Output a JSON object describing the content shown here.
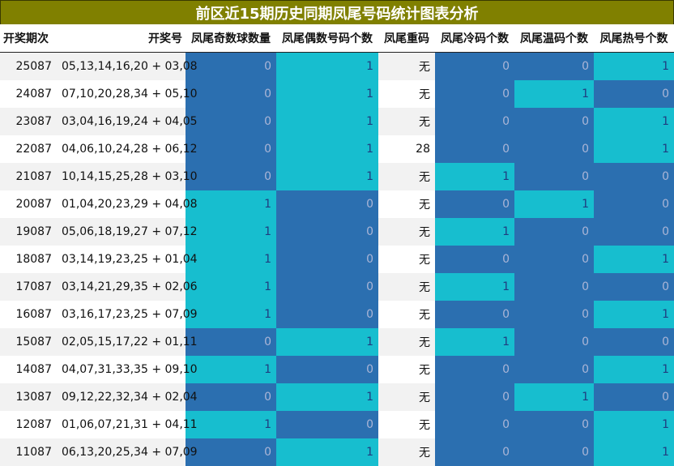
{
  "title": "前区近15期历史同期凤尾号码统计图表分析",
  "colors": {
    "dark": "#2b6fb0",
    "light": "#17becf",
    "title_bg": "#808000"
  },
  "headers": [
    "开奖期次",
    "开奖号",
    "凤尾奇数球数量",
    "凤尾偶数号码个数",
    "凤尾重码",
    "凤尾冷码个数",
    "凤尾温码个数",
    "凤尾热号个数"
  ],
  "rows": [
    {
      "issue": "25087",
      "numbers": "05,13,14,16,20 + 03,08",
      "odd": "0",
      "even": "1",
      "repeat": "无",
      "cold": "0",
      "warm": "0",
      "hot": "1"
    },
    {
      "issue": "24087",
      "numbers": "07,10,20,28,34 + 05,10",
      "odd": "0",
      "even": "1",
      "repeat": "无",
      "cold": "0",
      "warm": "1",
      "hot": "0"
    },
    {
      "issue": "23087",
      "numbers": "03,04,16,19,24 + 04,05",
      "odd": "0",
      "even": "1",
      "repeat": "无",
      "cold": "0",
      "warm": "0",
      "hot": "1"
    },
    {
      "issue": "22087",
      "numbers": "04,06,10,24,28 + 06,12",
      "odd": "0",
      "even": "1",
      "repeat": "28",
      "cold": "0",
      "warm": "0",
      "hot": "1"
    },
    {
      "issue": "21087",
      "numbers": "10,14,15,25,28 + 03,10",
      "odd": "0",
      "even": "1",
      "repeat": "无",
      "cold": "1",
      "warm": "0",
      "hot": "0"
    },
    {
      "issue": "20087",
      "numbers": "01,04,20,23,29 + 04,08",
      "odd": "1",
      "even": "0",
      "repeat": "无",
      "cold": "0",
      "warm": "1",
      "hot": "0"
    },
    {
      "issue": "19087",
      "numbers": "05,06,18,19,27 + 07,12",
      "odd": "1",
      "even": "0",
      "repeat": "无",
      "cold": "1",
      "warm": "0",
      "hot": "0"
    },
    {
      "issue": "18087",
      "numbers": "03,14,19,23,25 + 01,04",
      "odd": "1",
      "even": "0",
      "repeat": "无",
      "cold": "0",
      "warm": "0",
      "hot": "1"
    },
    {
      "issue": "17087",
      "numbers": "03,14,21,29,35 + 02,06",
      "odd": "1",
      "even": "0",
      "repeat": "无",
      "cold": "1",
      "warm": "0",
      "hot": "0"
    },
    {
      "issue": "16087",
      "numbers": "03,16,17,23,25 + 07,09",
      "odd": "1",
      "even": "0",
      "repeat": "无",
      "cold": "0",
      "warm": "0",
      "hot": "1"
    },
    {
      "issue": "15087",
      "numbers": "02,05,15,17,22 + 01,11",
      "odd": "0",
      "even": "1",
      "repeat": "无",
      "cold": "1",
      "warm": "0",
      "hot": "0"
    },
    {
      "issue": "14087",
      "numbers": "04,07,31,33,35 + 09,10",
      "odd": "1",
      "even": "0",
      "repeat": "无",
      "cold": "0",
      "warm": "0",
      "hot": "1"
    },
    {
      "issue": "13087",
      "numbers": "09,12,22,32,34 + 02,04",
      "odd": "0",
      "even": "1",
      "repeat": "无",
      "cold": "0",
      "warm": "1",
      "hot": "0"
    },
    {
      "issue": "12087",
      "numbers": "01,06,07,21,31 + 04,11",
      "odd": "1",
      "even": "0",
      "repeat": "无",
      "cold": "0",
      "warm": "0",
      "hot": "1"
    },
    {
      "issue": "11087",
      "numbers": "06,13,20,25,34 + 07,09",
      "odd": "0",
      "even": "1",
      "repeat": "无",
      "cold": "0",
      "warm": "0",
      "hot": "1"
    }
  ]
}
